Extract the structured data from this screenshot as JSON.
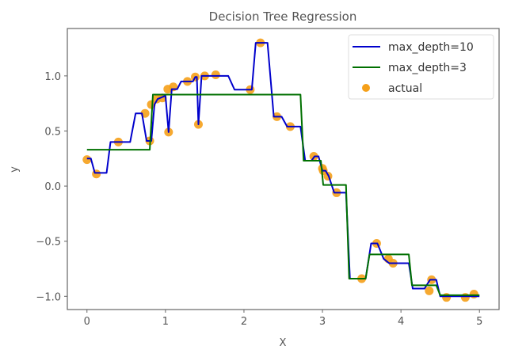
{
  "chart_data": {
    "type": "line",
    "title": "Decision Tree Regression",
    "xlabel": "X",
    "ylabel": "y",
    "xlim": [
      -0.25,
      5.25
    ],
    "ylim": [
      -1.12,
      1.43
    ],
    "xticks": [
      0,
      1,
      2,
      3,
      4,
      5
    ],
    "xtick_labels": [
      "0",
      "1",
      "2",
      "3",
      "4",
      "5"
    ],
    "yticks": [
      1.0,
      0.5,
      0.0,
      -0.5,
      -1.0
    ],
    "ytick_labels": [
      "1.0",
      "0.5",
      "0.0",
      "−0.5",
      "−1.0"
    ],
    "grid": false,
    "legend_position": "top-right",
    "series": [
      {
        "name": "max_depth=10",
        "kind": "line",
        "color": "#0000cc",
        "x": [
          0,
          0.05,
          0.1,
          0.25,
          0.3,
          0.55,
          0.62,
          0.7,
          0.76,
          0.82,
          0.86,
          0.9,
          1.0,
          1.04,
          1.08,
          1.15,
          1.2,
          1.35,
          1.38,
          1.4,
          1.42,
          1.46,
          1.8,
          1.88,
          2.1,
          2.15,
          2.3,
          2.38,
          2.48,
          2.55,
          2.72,
          2.78,
          2.86,
          2.9,
          2.95,
          3.0,
          3.04,
          3.08,
          3.15,
          3.3,
          3.35,
          3.55,
          3.62,
          3.7,
          3.78,
          3.85,
          4.1,
          4.15,
          4.3,
          4.37,
          4.45,
          4.5,
          5.0
        ],
        "y": [
          0.25,
          0.25,
          0.12,
          0.12,
          0.4,
          0.4,
          0.66,
          0.66,
          0.41,
          0.41,
          0.74,
          0.79,
          0.82,
          0.49,
          0.88,
          0.88,
          0.95,
          0.95,
          0.99,
          0.99,
          0.56,
          1.0,
          1.0,
          0.875,
          0.875,
          1.3,
          1.3,
          0.63,
          0.63,
          0.54,
          0.54,
          0.23,
          0.23,
          0.27,
          0.27,
          0.14,
          0.14,
          0.09,
          -0.06,
          -0.06,
          -0.84,
          -0.84,
          -0.52,
          -0.52,
          -0.66,
          -0.7,
          -0.7,
          -0.93,
          -0.93,
          -0.85,
          -0.85,
          -1.0,
          -1.0
        ]
      },
      {
        "name": "max_depth=3",
        "kind": "line",
        "color": "#007000",
        "x": [
          0,
          0.8,
          0.84,
          2.72,
          2.76,
          2.98,
          3.01,
          3.3,
          3.34,
          3.55,
          3.6,
          4.1,
          4.14,
          4.45,
          4.5,
          5.0
        ],
        "y": [
          0.33,
          0.33,
          0.83,
          0.83,
          0.23,
          0.23,
          0.01,
          0.01,
          -0.84,
          -0.84,
          -0.62,
          -0.62,
          -0.9,
          -0.9,
          -0.99,
          -0.99
        ]
      },
      {
        "name": "actual",
        "kind": "scatter",
        "color": "#f5a01a",
        "x": [
          0.0,
          0.12,
          0.4,
          0.74,
          0.8,
          0.82,
          0.89,
          0.96,
          1.03,
          1.04,
          1.1,
          1.28,
          1.38,
          1.42,
          1.5,
          1.64,
          2.08,
          2.21,
          2.42,
          2.59,
          2.89,
          3.0,
          3.01,
          3.07,
          3.18,
          3.5,
          3.69,
          3.84,
          3.9,
          4.36,
          4.39,
          4.58,
          4.82,
          4.93
        ],
        "y": [
          0.24,
          0.11,
          0.4,
          0.66,
          0.41,
          0.74,
          0.79,
          0.8,
          0.88,
          0.49,
          0.9,
          0.95,
          0.99,
          0.56,
          1.0,
          1.01,
          0.875,
          1.3,
          0.63,
          0.54,
          0.27,
          0.16,
          0.14,
          0.09,
          -0.06,
          -0.84,
          -0.52,
          -0.66,
          -0.7,
          -0.95,
          -0.85,
          -1.01,
          -1.01,
          -0.98
        ]
      }
    ]
  }
}
